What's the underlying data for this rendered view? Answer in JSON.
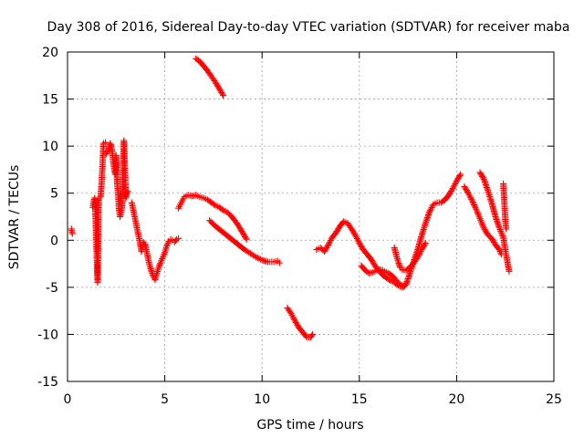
{
  "chart_data": {
    "type": "scatter",
    "title": "Day 308 of 2016, Sidereal Day-to-day VTEC variation (SDTVAR) for receiver maba",
    "xlabel": "GPS time / hours",
    "ylabel": "SDTVAR / TECUs",
    "xlim": [
      0,
      25
    ],
    "ylim": [
      -15,
      20
    ],
    "xticks": [
      0,
      5,
      10,
      15,
      20,
      25
    ],
    "yticks": [
      -15,
      -10,
      -5,
      0,
      5,
      10,
      15,
      20
    ],
    "xtick_labels": [
      "0",
      "5",
      "10",
      "15",
      "20",
      "25"
    ],
    "ytick_labels": [
      "-15",
      "-10",
      "-5",
      "0",
      "5",
      "10",
      "15",
      "20"
    ],
    "grid": true,
    "legend": "none",
    "marker": "+",
    "color": "#ff0000",
    "series": [
      {
        "name": "SDTVAR",
        "segments": [
          [
            [
              0.2,
              1.2
            ],
            [
              0.25,
              0.7
            ]
          ],
          [
            [
              1.3,
              3.5
            ],
            [
              1.35,
              4.2
            ],
            [
              1.4,
              4.5
            ],
            [
              1.45,
              2.0
            ],
            [
              1.5,
              -1.5
            ],
            [
              1.52,
              -3.2
            ],
            [
              1.55,
              -4.5
            ],
            [
              1.6,
              4.4
            ],
            [
              1.7,
              4.6
            ],
            [
              1.75,
              6.0
            ],
            [
              1.8,
              8.0
            ],
            [
              1.85,
              10.3
            ],
            [
              1.95,
              10.4
            ]
          ],
          [
            [
              2.0,
              9.2
            ],
            [
              2.1,
              9.6
            ],
            [
              2.2,
              10.3
            ],
            [
              2.3,
              9.5
            ],
            [
              2.35,
              8.3
            ],
            [
              2.45,
              7.0
            ],
            [
              2.5,
              9.0
            ],
            [
              2.55,
              6.0
            ],
            [
              2.6,
              5.0
            ],
            [
              2.65,
              3.2
            ],
            [
              2.7,
              2.5
            ],
            [
              2.8,
              3.5
            ],
            [
              2.9,
              10.6
            ],
            [
              3.0,
              4.5
            ],
            [
              3.1,
              5.2
            ]
          ],
          [
            [
              3.3,
              4.0
            ],
            [
              3.4,
              3.0
            ],
            [
              3.5,
              2.0
            ],
            [
              3.6,
              1.0
            ],
            [
              3.7,
              0.0
            ],
            [
              3.8,
              -1.2
            ],
            [
              3.9,
              -0.2
            ],
            [
              4.0,
              -0.5
            ],
            [
              4.1,
              -1.5
            ],
            [
              4.2,
              -2.5
            ],
            [
              4.3,
              -3.2
            ],
            [
              4.4,
              -3.8
            ],
            [
              4.5,
              -4.2
            ],
            [
              4.6,
              -3.5
            ],
            [
              4.7,
              -2.8
            ],
            [
              4.8,
              -2.3
            ],
            [
              4.9,
              -1.8
            ],
            [
              5.0,
              -1.3
            ],
            [
              5.1,
              -0.6
            ],
            [
              5.2,
              -0.1
            ],
            [
              5.3,
              0.1
            ],
            [
              5.4,
              0.0
            ],
            [
              5.5,
              -0.2
            ],
            [
              5.6,
              0.1
            ],
            [
              5.7,
              0.2
            ]
          ],
          [
            [
              5.7,
              3.4
            ],
            [
              5.8,
              3.8
            ],
            [
              5.9,
              4.2
            ],
            [
              6.0,
              4.6
            ],
            [
              6.2,
              4.8
            ],
            [
              6.4,
              4.7
            ],
            [
              6.6,
              4.8
            ],
            [
              6.8,
              4.6
            ],
            [
              7.0,
              4.5
            ],
            [
              7.2,
              4.3
            ],
            [
              7.4,
              4.0
            ],
            [
              7.6,
              3.7
            ],
            [
              7.8,
              3.5
            ],
            [
              8.0,
              3.2
            ],
            [
              8.2,
              3.0
            ],
            [
              8.4,
              2.6
            ],
            [
              8.6,
              2.1
            ],
            [
              8.8,
              1.5
            ],
            [
              9.0,
              0.8
            ],
            [
              9.2,
              0.1
            ]
          ],
          [
            [
              6.6,
              19.3
            ],
            [
              6.8,
              19.0
            ],
            [
              7.0,
              18.5
            ],
            [
              7.2,
              18.0
            ],
            [
              7.4,
              17.4
            ],
            [
              7.6,
              16.8
            ],
            [
              7.8,
              16.1
            ],
            [
              8.0,
              15.4
            ]
          ],
          [
            [
              7.3,
              2.1
            ],
            [
              7.6,
              1.5
            ],
            [
              7.9,
              1.0
            ],
            [
              8.2,
              0.5
            ],
            [
              8.5,
              0.0
            ],
            [
              8.8,
              -0.5
            ],
            [
              9.1,
              -1.0
            ],
            [
              9.4,
              -1.4
            ],
            [
              9.7,
              -1.8
            ],
            [
              10.0,
              -2.1
            ],
            [
              10.3,
              -2.3
            ],
            [
              10.6,
              -2.3
            ],
            [
              10.8,
              -2.2
            ],
            [
              10.9,
              -2.4
            ]
          ],
          [
            [
              11.3,
              -7.2
            ],
            [
              11.5,
              -7.8
            ],
            [
              11.7,
              -8.6
            ],
            [
              11.9,
              -9.3
            ],
            [
              12.1,
              -9.8
            ],
            [
              12.3,
              -10.3
            ],
            [
              12.5,
              -10.3
            ],
            [
              12.6,
              -10.0
            ]
          ],
          [
            [
              12.8,
              -1.0
            ],
            [
              13.0,
              -0.8
            ],
            [
              13.2,
              -1.2
            ],
            [
              13.4,
              -0.5
            ],
            [
              13.6,
              0.3
            ],
            [
              13.8,
              0.8
            ],
            [
              14.0,
              1.5
            ],
            [
              14.2,
              2.0
            ],
            [
              14.4,
              1.8
            ],
            [
              14.6,
              1.2
            ],
            [
              14.8,
              0.5
            ],
            [
              15.0,
              -0.3
            ],
            [
              15.2,
              -1.0
            ],
            [
              15.4,
              -1.5
            ],
            [
              15.6,
              -2.0
            ],
            [
              15.8,
              -2.7
            ],
            [
              16.0,
              -3.2
            ],
            [
              16.2,
              -3.7
            ],
            [
              16.4,
              -4.0
            ],
            [
              16.6,
              -4.3
            ],
            [
              16.8,
              -4.5
            ],
            [
              17.0,
              -4.8
            ],
            [
              17.2,
              -5.0
            ],
            [
              17.4,
              -4.7
            ],
            [
              17.6,
              -3.5
            ],
            [
              17.8,
              -2.2
            ],
            [
              18.0,
              -1.0
            ],
            [
              18.2,
              0.5
            ],
            [
              18.4,
              1.8
            ],
            [
              18.6,
              3.0
            ],
            [
              18.8,
              3.8
            ],
            [
              19.0,
              4.0
            ],
            [
              19.2,
              4.0
            ],
            [
              19.4,
              4.3
            ],
            [
              19.6,
              4.8
            ],
            [
              19.8,
              5.5
            ],
            [
              20.0,
              6.3
            ],
            [
              20.2,
              7.0
            ]
          ],
          [
            [
              15.1,
              -2.7
            ],
            [
              15.3,
              -3.2
            ],
            [
              15.5,
              -3.5
            ],
            [
              15.7,
              -3.4
            ],
            [
              15.9,
              -3.2
            ],
            [
              16.1,
              -3.1
            ],
            [
              16.3,
              -3.3
            ],
            [
              16.5,
              -3.5
            ],
            [
              16.7,
              -3.8
            ],
            [
              16.9,
              -4.3
            ],
            [
              17.1,
              -4.7
            ],
            [
              17.3,
              -4.9
            ]
          ],
          [
            [
              16.8,
              -0.8
            ],
            [
              16.9,
              -1.6
            ],
            [
              17.0,
              -2.3
            ],
            [
              17.1,
              -2.9
            ],
            [
              17.2,
              -3.1
            ],
            [
              17.4,
              -3.2
            ],
            [
              17.6,
              -2.9
            ],
            [
              17.8,
              -2.4
            ],
            [
              18.0,
              -1.8
            ],
            [
              18.2,
              -1.0
            ],
            [
              18.4,
              -0.3
            ]
          ],
          [
            [
              20.4,
              5.7
            ],
            [
              20.6,
              5.0
            ],
            [
              20.8,
              4.2
            ],
            [
              21.0,
              3.3
            ],
            [
              21.2,
              2.3
            ],
            [
              21.4,
              1.3
            ],
            [
              21.6,
              0.6
            ],
            [
              21.8,
              0.2
            ],
            [
              22.0,
              -0.5
            ],
            [
              22.2,
              -1.0
            ],
            [
              22.3,
              -1.5
            ]
          ],
          [
            [
              21.2,
              7.2
            ],
            [
              21.4,
              6.5
            ],
            [
              21.6,
              5.3
            ],
            [
              21.8,
              4.0
            ],
            [
              22.0,
              2.5
            ],
            [
              22.2,
              1.3
            ],
            [
              22.4,
              0.3
            ],
            [
              22.5,
              -1.0
            ],
            [
              22.6,
              -2.2
            ],
            [
              22.7,
              -3.3
            ]
          ],
          [
            [
              22.4,
              6.0
            ],
            [
              22.45,
              4.2
            ],
            [
              22.5,
              2.2
            ],
            [
              22.55,
              1.2
            ]
          ]
        ]
      }
    ]
  }
}
